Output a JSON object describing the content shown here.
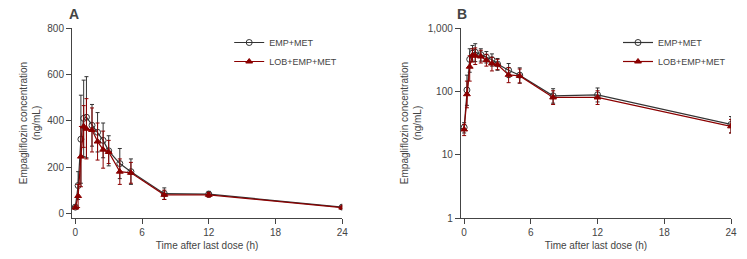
{
  "chart_data": [
    {
      "type": "line",
      "title": "A",
      "xlabel": "Time after last dose (h)",
      "ylabel": "Empagliflozin concentration\n(ng/mL)",
      "xlim": [
        -0.3,
        24
      ],
      "ylim": [
        -20,
        800
      ],
      "xticks": [
        0,
        6,
        12,
        18,
        24
      ],
      "yticks": [
        0,
        200,
        400,
        600,
        800
      ],
      "grid": false,
      "legend": "upper right",
      "x": [
        0,
        0.25,
        0.5,
        0.75,
        1.0,
        1.5,
        2.0,
        2.5,
        3.0,
        4.0,
        5.0,
        8.0,
        12.0,
        24.0
      ],
      "series": [
        {
          "name": "EMP+MET",
          "color": "#333333",
          "marker": "circle-open",
          "line_style": "solid",
          "values": [
            27,
            120,
            320,
            410,
            415,
            380,
            350,
            315,
            270,
            215,
            180,
            85,
            83,
            27
          ],
          "yerr": [
            5,
            60,
            190,
            165,
            175,
            90,
            85,
            75,
            65,
            65,
            55,
            25,
            12,
            8
          ]
        },
        {
          "name": "LOB+EMP+MET",
          "color": "#8B0000",
          "marker": "triangle-up",
          "line_style": "solid",
          "values": [
            25,
            75,
            245,
            375,
            365,
            360,
            310,
            275,
            265,
            180,
            175,
            80,
            80,
            25
          ],
          "yerr": [
            5,
            50,
            130,
            90,
            130,
            95,
            80,
            80,
            50,
            55,
            45,
            20,
            10,
            6
          ]
        }
      ]
    },
    {
      "type": "line",
      "title": "B",
      "xlabel": "Time after last dose (h)",
      "ylabel": "Empagliflozin concentration\n(ng/mL)",
      "log": "y",
      "xlim": [
        -0.3,
        24
      ],
      "ylim": [
        1,
        1000
      ],
      "xticks": [
        0,
        6,
        12,
        18,
        24
      ],
      "yticks": [
        1,
        10,
        100,
        {
          "value": 1000,
          "label": "1,000"
        }
      ],
      "grid": false,
      "legend": "upper right",
      "x": [
        0,
        0.25,
        0.5,
        0.75,
        1.0,
        1.5,
        2.0,
        2.5,
        3.0,
        4.0,
        5.0,
        8.0,
        12.0,
        24.0
      ],
      "series": [
        {
          "name": "EMP+MET",
          "color": "#333333",
          "marker": "circle-open",
          "line_style": "solid",
          "values": [
            27,
            105,
            320,
            400,
            415,
            380,
            345,
            315,
            270,
            215,
            180,
            85,
            88,
            30
          ],
          "yerr_lo": [
            5,
            45,
            120,
            100,
            120,
            80,
            65,
            65,
            55,
            50,
            45,
            20,
            20,
            8
          ],
          "yerr_hi": [
            5,
            75,
            150,
            130,
            150,
            90,
            80,
            75,
            60,
            60,
            55,
            25,
            25,
            10
          ]
        },
        {
          "name": "LOB+EMP+MET",
          "color": "#8B0000",
          "marker": "triangle-up",
          "line_style": "solid",
          "values": [
            25,
            90,
            245,
            370,
            365,
            355,
            310,
            275,
            265,
            182,
            175,
            80,
            80,
            28
          ],
          "yerr_lo": [
            5,
            35,
            100,
            80,
            100,
            75,
            60,
            65,
            45,
            45,
            40,
            18,
            18,
            6
          ],
          "yerr_hi": [
            5,
            55,
            120,
            100,
            120,
            90,
            75,
            70,
            55,
            55,
            50,
            22,
            22,
            8
          ]
        }
      ]
    }
  ]
}
